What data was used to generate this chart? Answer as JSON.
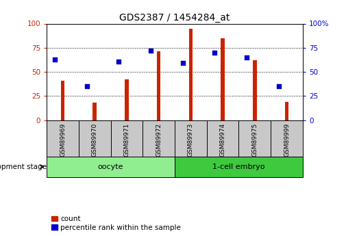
{
  "title": "GDS2387 / 1454284_at",
  "samples": [
    "GSM89969",
    "GSM89970",
    "GSM89971",
    "GSM89972",
    "GSM89973",
    "GSM89974",
    "GSM89975",
    "GSM89999"
  ],
  "counts": [
    41,
    18,
    42,
    71,
    95,
    85,
    62,
    19
  ],
  "percentiles": [
    63,
    35,
    61,
    72,
    59,
    70,
    65,
    35
  ],
  "groups": [
    {
      "label": "oocyte",
      "start": 0,
      "end": 4,
      "color": "#90EE90"
    },
    {
      "label": "1-cell embryo",
      "start": 4,
      "end": 8,
      "color": "#3EC93E"
    }
  ],
  "bar_color": "#CC2200",
  "dot_color": "#0000CC",
  "ylim": [
    0,
    100
  ],
  "yticks": [
    0,
    25,
    50,
    75,
    100
  ],
  "dev_stage_label": "development stage",
  "legend_count_label": "count",
  "legend_pct_label": "percentile rank within the sample",
  "axis_color_left": "#CC2200",
  "axis_color_right": "#0000CC",
  "bg_color": "#FFFFFF",
  "tick_area_color": "#C8C8C8",
  "bar_width": 0.12
}
